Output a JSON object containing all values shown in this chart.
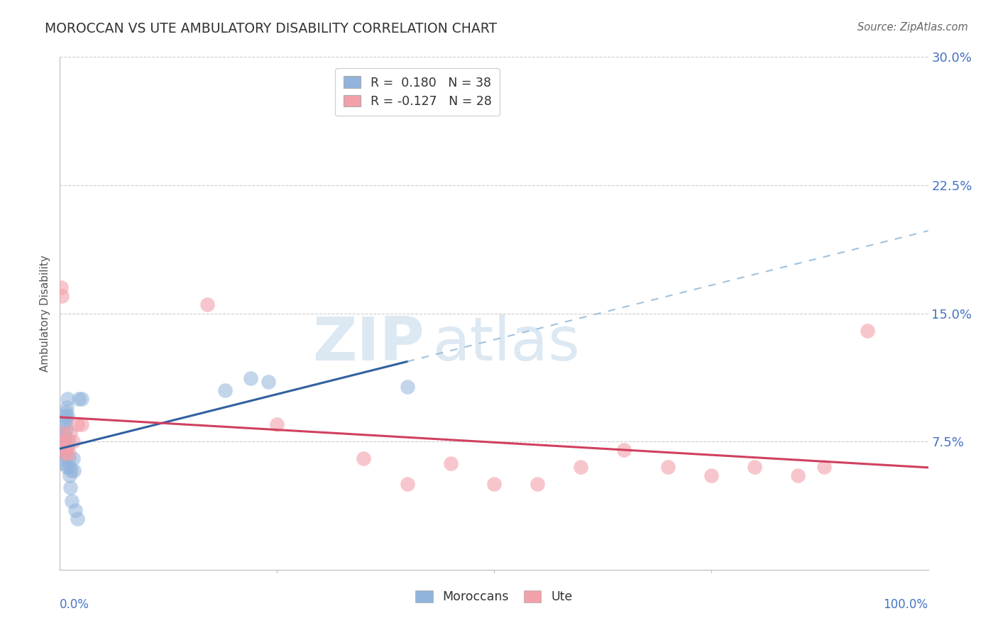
{
  "title": "MOROCCAN VS UTE AMBULATORY DISABILITY CORRELATION CHART",
  "source": "Source: ZipAtlas.com",
  "ylabel": "Ambulatory Disability",
  "legend_moroccan_R": "0.180",
  "legend_moroccan_N": "38",
  "legend_ute_R": "-0.127",
  "legend_ute_N": "28",
  "moroccan_color": "#92B4DC",
  "ute_color": "#F2A0AA",
  "moroccan_line_color": "#3060A0",
  "ute_line_color": "#D04060",
  "moroccan_dash_color": "#90B8D8",
  "background_color": "#ffffff",
  "grid_color": "#cccccc",
  "xmin": 0.0,
  "xmax": 1.0,
  "ymin": 0.0,
  "ymax": 0.3,
  "yticks": [
    0.075,
    0.15,
    0.225,
    0.3
  ],
  "ytick_labels": [
    "7.5%",
    "15.0%",
    "22.5%",
    "30.0%"
  ],
  "moroccan_x": [
    0.002,
    0.003,
    0.003,
    0.004,
    0.004,
    0.004,
    0.005,
    0.005,
    0.005,
    0.005,
    0.006,
    0.006,
    0.006,
    0.007,
    0.007,
    0.007,
    0.008,
    0.008,
    0.009,
    0.009,
    0.009,
    0.01,
    0.01,
    0.011,
    0.011,
    0.012,
    0.013,
    0.014,
    0.015,
    0.016,
    0.018,
    0.02,
    0.022,
    0.025,
    0.19,
    0.22,
    0.24,
    0.4
  ],
  "moroccan_y": [
    0.072,
    0.078,
    0.068,
    0.075,
    0.07,
    0.065,
    0.08,
    0.072,
    0.068,
    0.062,
    0.09,
    0.085,
    0.078,
    0.092,
    0.088,
    0.082,
    0.095,
    0.06,
    0.1,
    0.09,
    0.072,
    0.075,
    0.065,
    0.06,
    0.055,
    0.048,
    0.058,
    0.04,
    0.065,
    0.058,
    0.035,
    0.03,
    0.1,
    0.1,
    0.105,
    0.112,
    0.11,
    0.107
  ],
  "ute_x": [
    0.001,
    0.002,
    0.003,
    0.004,
    0.005,
    0.006,
    0.007,
    0.008,
    0.01,
    0.012,
    0.015,
    0.02,
    0.025,
    0.17,
    0.25,
    0.35,
    0.4,
    0.45,
    0.5,
    0.55,
    0.6,
    0.65,
    0.7,
    0.75,
    0.8,
    0.85,
    0.88,
    0.93
  ],
  "ute_y": [
    0.165,
    0.16,
    0.08,
    0.075,
    0.07,
    0.068,
    0.075,
    0.072,
    0.068,
    0.08,
    0.075,
    0.085,
    0.085,
    0.155,
    0.085,
    0.065,
    0.05,
    0.062,
    0.05,
    0.05,
    0.06,
    0.07,
    0.06,
    0.055,
    0.06,
    0.055,
    0.06,
    0.14
  ],
  "watermark_line1": "ZIP",
  "watermark_line2": "atlas",
  "watermark_color": "#dce8f2"
}
